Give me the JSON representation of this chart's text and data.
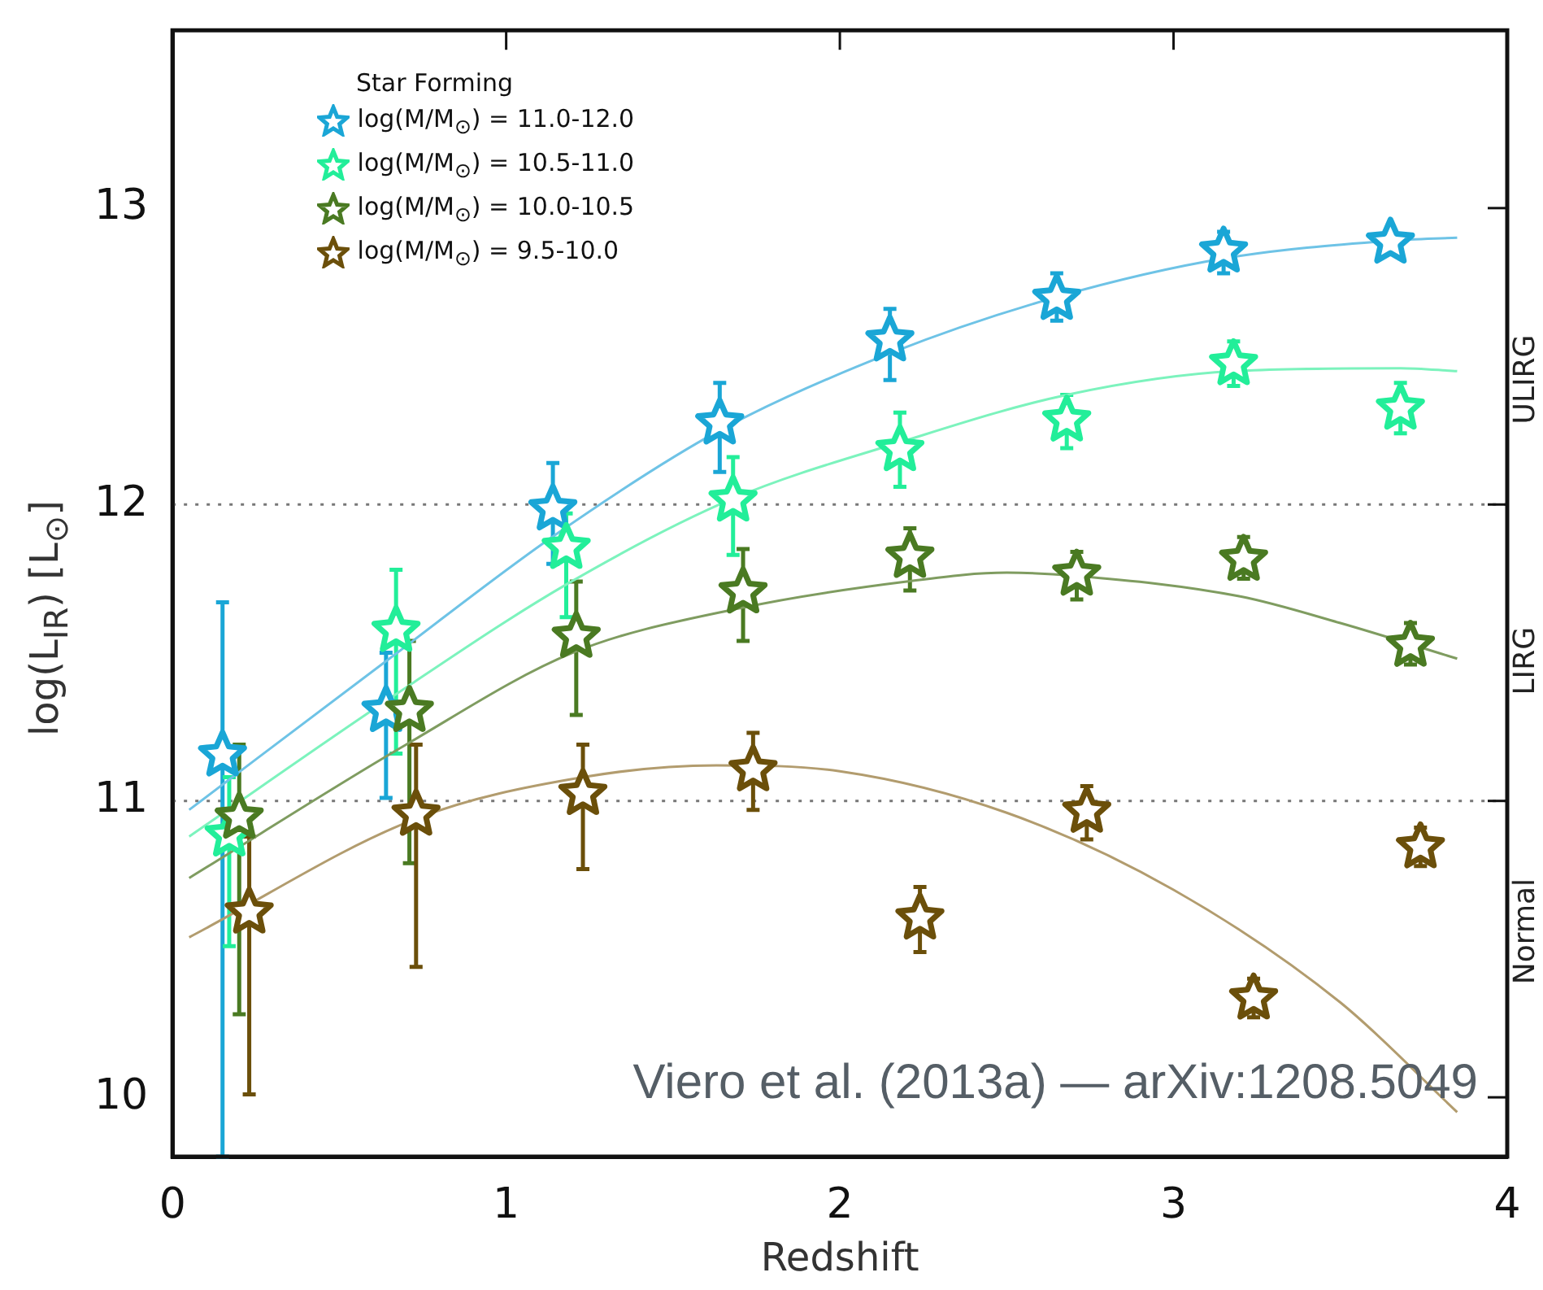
{
  "chart_data": {
    "type": "scatter",
    "xlabel": "Redshift",
    "ylabel": "log(L$_{IR}$)  [L$_{⊙}$]",
    "legend_title": "Star Forming",
    "legend": "top left",
    "marker": "star",
    "grid": false,
    "xlim": [
      0,
      4
    ],
    "xticks": [
      0,
      1,
      2,
      3,
      4
    ],
    "ylim": [
      9.8,
      13.6
    ],
    "yticks": [
      10,
      11,
      12,
      13
    ],
    "ref_lines": [
      {
        "axis": "y",
        "value": 12,
        "color": "#777777",
        "line_style": "dotted"
      },
      {
        "axis": "y",
        "value": 11,
        "color": "#777777",
        "line_style": "dotted"
      }
    ],
    "annotations": [
      "ULIRG",
      "LIRG",
      "Normal",
      "Viero et al. (2013a) — arXiv:1208.5049"
    ],
    "series": [
      {
        "name": "log(M/M$_{⊙}$) = 11.0-12.0",
        "color": "#1aa6d6",
        "x": [
          0.15,
          0.64,
          1.14,
          1.64,
          2.15,
          2.65,
          3.15,
          3.65
        ],
        "values": [
          11.16,
          11.31,
          11.99,
          12.28,
          12.56,
          12.7,
          12.86,
          12.89
        ],
        "errors": [
          [
            9.8,
            11.67
          ],
          [
            11.01,
            11.5
          ],
          [
            11.8,
            12.14
          ],
          [
            12.11,
            12.41
          ],
          [
            12.42,
            12.66
          ],
          [
            12.62,
            12.78
          ],
          [
            12.78,
            12.92
          ],
          null
        ]
      },
      {
        "name": "log(M/M$_{⊙}$) = 10.5-11.0",
        "color": "#22ee99",
        "x": [
          0.17,
          0.67,
          1.18,
          1.68,
          2.18,
          2.68,
          3.18,
          3.68
        ],
        "values": [
          10.89,
          11.58,
          11.86,
          12.02,
          12.19,
          12.29,
          12.48,
          12.33
        ],
        "errors": [
          [
            10.51,
            11.08
          ],
          [
            11.16,
            11.78
          ],
          [
            11.62,
            11.97
          ],
          [
            11.83,
            12.16
          ],
          [
            12.06,
            12.31
          ],
          [
            12.19,
            12.37
          ],
          [
            12.4,
            12.55
          ],
          [
            12.24,
            12.41
          ]
        ]
      },
      {
        "name": "log(M/M$_{⊙}$) = 10.0-10.5",
        "color": "#4a7a22",
        "x": [
          0.2,
          0.71,
          1.21,
          1.71,
          2.21,
          2.71,
          3.21,
          3.71
        ],
        "values": [
          10.95,
          11.31,
          11.56,
          11.71,
          11.83,
          11.77,
          11.82,
          11.53
        ],
        "errors": [
          [
            10.28,
            11.19
          ],
          [
            10.79,
            11.54
          ],
          [
            11.29,
            11.74
          ],
          [
            11.54,
            11.85
          ],
          [
            11.71,
            11.92
          ],
          [
            11.68,
            11.84
          ],
          [
            11.75,
            11.89
          ],
          [
            11.46,
            11.6
          ]
        ]
      },
      {
        "name": "log(M/M$_{⊙}$) = 9.5-10.0",
        "color": "#6b4f0a",
        "x": [
          0.23,
          0.73,
          1.23,
          1.74,
          2.24,
          2.74,
          3.24,
          3.74
        ],
        "values": [
          10.63,
          10.96,
          11.03,
          11.11,
          10.61,
          10.97,
          10.34,
          10.85
        ],
        "errors": [
          [
            10.01,
            10.88
          ],
          [
            10.44,
            11.19
          ],
          [
            10.77,
            11.19
          ],
          [
            10.97,
            11.23
          ],
          [
            10.49,
            10.71
          ],
          [
            10.87,
            11.05
          ],
          [
            10.27,
            10.4
          ],
          [
            10.78,
            10.91
          ]
        ]
      },
      {
        "type": "line",
        "marker": "none",
        "color": "#6ec3e6",
        "x": [
          0.05,
          0.65,
          1.15,
          1.64,
          2.15,
          2.65,
          3.15,
          3.65,
          3.85
        ],
        "values": [
          10.97,
          11.48,
          11.9,
          12.25,
          12.51,
          12.7,
          12.83,
          12.89,
          12.9
        ]
      },
      {
        "type": "line",
        "marker": "none",
        "color": "#7cf3bd",
        "x": [
          0.05,
          0.67,
          1.18,
          1.68,
          2.18,
          2.68,
          3.18,
          3.68,
          3.85
        ],
        "values": [
          10.88,
          11.36,
          11.73,
          12.02,
          12.21,
          12.37,
          12.45,
          12.46,
          12.45
        ]
      },
      {
        "type": "line",
        "marker": "none",
        "color": "#7f9c60",
        "x": [
          0.05,
          0.7,
          1.2,
          1.7,
          2.2,
          2.5,
          2.7,
          3.2,
          3.5,
          3.85
        ],
        "values": [
          10.74,
          11.19,
          11.5,
          11.65,
          11.74,
          11.77,
          11.76,
          11.69,
          11.6,
          11.48
        ]
      },
      {
        "type": "line",
        "marker": "none",
        "color": "#b29c6e",
        "x": [
          0.05,
          0.73,
          1.23,
          1.63,
          2.0,
          2.5,
          3.0,
          3.5,
          3.85
        ],
        "values": [
          10.54,
          10.94,
          11.08,
          11.12,
          11.1,
          10.96,
          10.7,
          10.32,
          9.95
        ]
      }
    ]
  }
}
